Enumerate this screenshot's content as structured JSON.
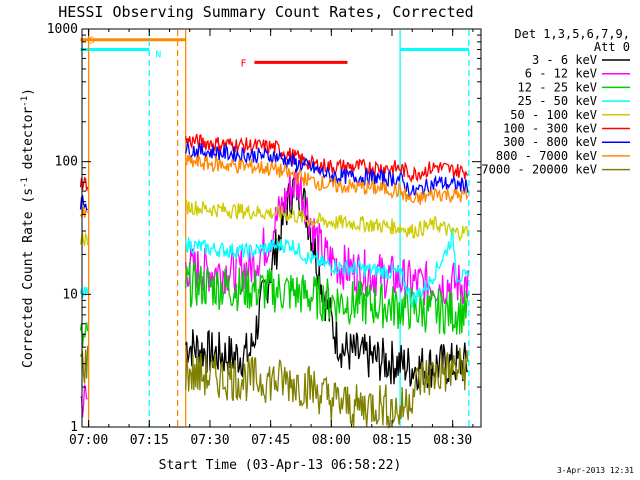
{
  "chart_data": {
    "type": "line",
    "title": "HESSI Observing Summary Count Rates, Corrected",
    "xlabel": "Start Time (03-Apr-13 06:58:22)",
    "ylabel_main": "Corrected Count Rate (s",
    "ylabel_sup1": "-1",
    "ylabel_mid": " detector",
    "ylabel_sup2": "-1",
    "ylabel_end": ")",
    "yscale": "log",
    "ylim": [
      1,
      1000
    ],
    "xlim": [
      "06:58:22",
      "08:37:00"
    ],
    "x_ticks": [
      "07:00",
      "07:15",
      "07:30",
      "07:45",
      "08:00",
      "08:15",
      "08:30"
    ],
    "y_ticks": [
      "1",
      "10",
      "100",
      "1000"
    ],
    "legend_position": "right",
    "legend_header": [
      "Det 1,3,5,6,7,9,",
      "Att 0"
    ],
    "series": [
      {
        "name": "3 - 6 keV",
        "color": "#000000",
        "points": [
          [
            "07:24",
            4.2
          ],
          [
            "07:30",
            3.6
          ],
          [
            "07:36",
            3.4
          ],
          [
            "07:40",
            3.6
          ],
          [
            "07:43",
            9
          ],
          [
            "07:46",
            20
          ],
          [
            "07:49",
            45
          ],
          [
            "07:51",
            68
          ],
          [
            "07:53",
            52
          ],
          [
            "07:55",
            30
          ],
          [
            "07:57",
            15
          ],
          [
            "07:59",
            8
          ],
          [
            "08:01",
            5
          ],
          [
            "08:03",
            3.8
          ],
          [
            "08:08",
            3.4
          ],
          [
            "08:12",
            3.2
          ],
          [
            "08:17",
            3.0
          ],
          [
            "08:20",
            2.8
          ],
          [
            "08:25",
            2.9
          ],
          [
            "08:34",
            3.0
          ]
        ]
      },
      {
        "name": "6 - 12 keV",
        "color": "#ff00ff",
        "points": [
          [
            "06:58",
            1.6
          ],
          [
            "07:00",
            1.6
          ],
          [
            "07:24",
            16
          ],
          [
            "07:30",
            15
          ],
          [
            "07:36",
            15
          ],
          [
            "07:40",
            16
          ],
          [
            "07:44",
            24
          ],
          [
            "07:47",
            40
          ],
          [
            "07:50",
            64
          ],
          [
            "07:52",
            70
          ],
          [
            "07:54",
            45
          ],
          [
            "07:56",
            28
          ],
          [
            "07:58",
            20
          ],
          [
            "08:01",
            17
          ],
          [
            "08:06",
            15
          ],
          [
            "08:12",
            14
          ],
          [
            "08:17",
            13
          ],
          [
            "08:20",
            12
          ],
          [
            "08:25",
            12
          ],
          [
            "08:34",
            12
          ]
        ]
      },
      {
        "name": "12 - 25 keV",
        "color": "#00cc00",
        "points": [
          [
            "06:58",
            4.5
          ],
          [
            "07:00",
            4.4
          ],
          [
            "07:24",
            12
          ],
          [
            "07:30",
            11.5
          ],
          [
            "07:40",
            11
          ],
          [
            "07:50",
            10.5
          ],
          [
            "07:56",
            9.5
          ],
          [
            "08:00",
            9
          ],
          [
            "08:06",
            8.6
          ],
          [
            "08:12",
            8.3
          ],
          [
            "08:17",
            8
          ],
          [
            "08:20",
            7.8
          ],
          [
            "08:25",
            7.5
          ],
          [
            "08:34",
            7.3
          ]
        ]
      },
      {
        "name": "25 - 50 keV",
        "color": "#00ffff",
        "points": [
          [
            "06:58",
            10
          ],
          [
            "07:00",
            10
          ],
          [
            "07:24",
            24
          ],
          [
            "07:30",
            22
          ],
          [
            "07:40",
            21
          ],
          [
            "07:46",
            23
          ],
          [
            "07:50",
            24
          ],
          [
            "07:54",
            19
          ],
          [
            "07:58",
            17
          ],
          [
            "08:02",
            16
          ],
          [
            "08:08",
            15.5
          ],
          [
            "08:12",
            15
          ],
          [
            "08:17",
            14.5
          ],
          [
            "08:20",
            9
          ],
          [
            "08:24",
            12
          ],
          [
            "08:28",
            20
          ],
          [
            "08:30",
            28
          ],
          [
            "08:31",
            14
          ],
          [
            "08:34",
            13
          ]
        ]
      },
      {
        "name": "50 - 100 keV",
        "color": "#cccc00",
        "points": [
          [
            "06:58",
            27
          ],
          [
            "07:00",
            26
          ],
          [
            "07:24",
            46
          ],
          [
            "07:30",
            44
          ],
          [
            "07:40",
            42
          ],
          [
            "07:50",
            40
          ],
          [
            "07:55",
            36
          ],
          [
            "08:00",
            35
          ],
          [
            "08:08",
            34
          ],
          [
            "08:12",
            33
          ],
          [
            "08:17",
            32
          ],
          [
            "08:20",
            30
          ],
          [
            "08:26",
            34
          ],
          [
            "08:30",
            29
          ],
          [
            "08:34",
            30
          ]
        ]
      },
      {
        "name": "100 - 300 keV",
        "color": "#ff0000",
        "points": [
          [
            "06:58",
            70
          ],
          [
            "07:00",
            68
          ],
          [
            "07:24",
            145
          ],
          [
            "07:30",
            138
          ],
          [
            "07:40",
            132
          ],
          [
            "07:46",
            128
          ],
          [
            "07:50",
            112
          ],
          [
            "07:55",
            96
          ],
          [
            "08:00",
            92
          ],
          [
            "08:08",
            91
          ],
          [
            "08:14",
            90
          ],
          [
            "08:17",
            89
          ],
          [
            "08:20",
            80
          ],
          [
            "08:26",
            92
          ],
          [
            "08:30",
            86
          ],
          [
            "08:34",
            84
          ]
        ]
      },
      {
        "name": "300 - 800 keV",
        "color": "#0000ff",
        "points": [
          [
            "06:58",
            50
          ],
          [
            "07:00",
            48
          ],
          [
            "07:24",
            125
          ],
          [
            "07:30",
            118
          ],
          [
            "07:40",
            112
          ],
          [
            "07:46",
            110
          ],
          [
            "07:50",
            100
          ],
          [
            "07:55",
            90
          ],
          [
            "08:00",
            78
          ],
          [
            "08:08",
            76
          ],
          [
            "08:14",
            75
          ],
          [
            "08:17",
            74
          ],
          [
            "08:20",
            58
          ],
          [
            "08:26",
            70
          ],
          [
            "08:30",
            67
          ],
          [
            "08:34",
            66
          ]
        ]
      },
      {
        "name": "800 - 7000 keV",
        "color": "#ff8800",
        "points": [
          [
            "06:58",
            40
          ],
          [
            "07:00",
            39
          ],
          [
            "07:24",
            100
          ],
          [
            "07:30",
            96
          ],
          [
            "07:40",
            92
          ],
          [
            "07:46",
            88
          ],
          [
            "07:50",
            80
          ],
          [
            "07:55",
            72
          ],
          [
            "08:00",
            66
          ],
          [
            "08:08",
            64
          ],
          [
            "08:14",
            62
          ],
          [
            "08:17",
            60
          ],
          [
            "08:20",
            50
          ],
          [
            "08:26",
            58
          ],
          [
            "08:30",
            56
          ],
          [
            "08:34",
            55
          ]
        ]
      },
      {
        "name": "7000 - 20000 keV",
        "color": "#808000",
        "points": [
          [
            "06:58",
            3.0
          ],
          [
            "07:00",
            3.0
          ],
          [
            "07:24",
            2.6
          ],
          [
            "07:30",
            2.4
          ],
          [
            "07:40",
            2.3
          ],
          [
            "07:50",
            2.2
          ],
          [
            "07:55",
            2.0
          ],
          [
            "08:00",
            1.6
          ],
          [
            "08:06",
            1.4
          ],
          [
            "08:12",
            1.5
          ],
          [
            "08:17",
            1.3
          ],
          [
            "08:22",
            2.3
          ],
          [
            "08:28",
            2.6
          ],
          [
            "08:34",
            2.8
          ]
        ]
      }
    ],
    "annotations": [
      {
        "label": "S",
        "color": "#ff8800",
        "start": "06:58",
        "end": "07:24",
        "level": 830
      },
      {
        "label": "N",
        "color": "#00ffff",
        "start": "06:58",
        "end": "07:15",
        "level": 700
      },
      {
        "label": "",
        "color": "#00ffff",
        "start": "08:17",
        "end": "08:34",
        "level": 700
      },
      {
        "label": "F",
        "color": "#ff0000",
        "start": "07:41",
        "end": "08:04",
        "level": 560
      }
    ],
    "vertical_markers": [
      {
        "time": "07:00",
        "color": "#ff8800",
        "style": "solid"
      },
      {
        "time": "07:15",
        "color": "#00ffff",
        "style": "dashed"
      },
      {
        "time": "07:22",
        "color": "#ff8800",
        "style": "dashed"
      },
      {
        "time": "07:24",
        "color": "#ff8800",
        "style": "solid"
      },
      {
        "time": "08:17",
        "color": "#00ffff",
        "style": "solid"
      },
      {
        "time": "08:34",
        "color": "#00ffff",
        "style": "dashed"
      }
    ],
    "timestamp": "3-Apr-2013 12:31"
  }
}
